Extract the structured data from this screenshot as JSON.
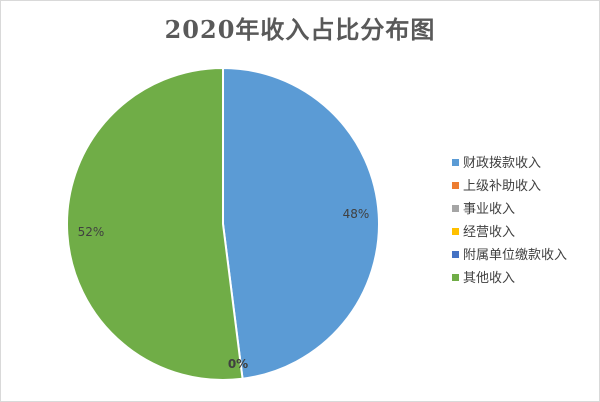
{
  "chart_data": {
    "type": "pie",
    "title": "2020年收入占比分布图",
    "categories": [
      "财政拨款收入",
      "上级补助收入",
      "事业收入",
      "经营收入",
      "附属单位缴款收入",
      "其他收入"
    ],
    "values": [
      48,
      0,
      0,
      0,
      0,
      52
    ],
    "data_labels": [
      "48%",
      "",
      "",
      "",
      "0%",
      "52%"
    ],
    "colors": [
      "#5b9bd5",
      "#ed7d31",
      "#a5a5a5",
      "#ffc000",
      "#4472c4",
      "#70ad47"
    ],
    "legend_position": "right"
  }
}
